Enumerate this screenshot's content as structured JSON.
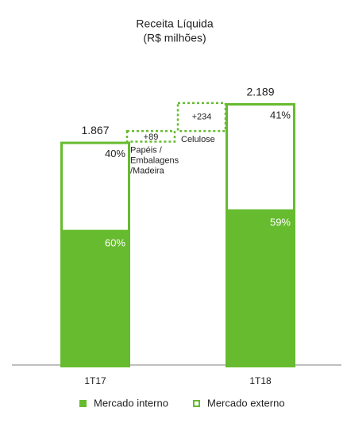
{
  "chart_data": {
    "type": "waterfall",
    "title": "Receita Líquida",
    "subtitle": "(R$ milhões)",
    "categories": [
      "1T17",
      "1T18"
    ],
    "totals": [
      1867,
      2189
    ],
    "total_labels": [
      "1.867",
      "2.189"
    ],
    "series": [
      {
        "name": "Mercado interno",
        "color": "#66bb2e",
        "fill": "solid",
        "values": [
          60,
          59
        ],
        "value_labels": [
          "60%",
          "59%"
        ]
      },
      {
        "name": "Mercado externo",
        "color": "#66bb2e",
        "fill": "hollow",
        "values": [
          40,
          41
        ],
        "value_labels": [
          "40%",
          "41%"
        ]
      }
    ],
    "steps": [
      {
        "label": [
          "Papéis /",
          "Embalagens",
          "/Madeira"
        ],
        "value": 89,
        "value_label": "+89"
      },
      {
        "label": [
          "Celulose"
        ],
        "value": 234,
        "value_label": "+234"
      }
    ]
  }
}
